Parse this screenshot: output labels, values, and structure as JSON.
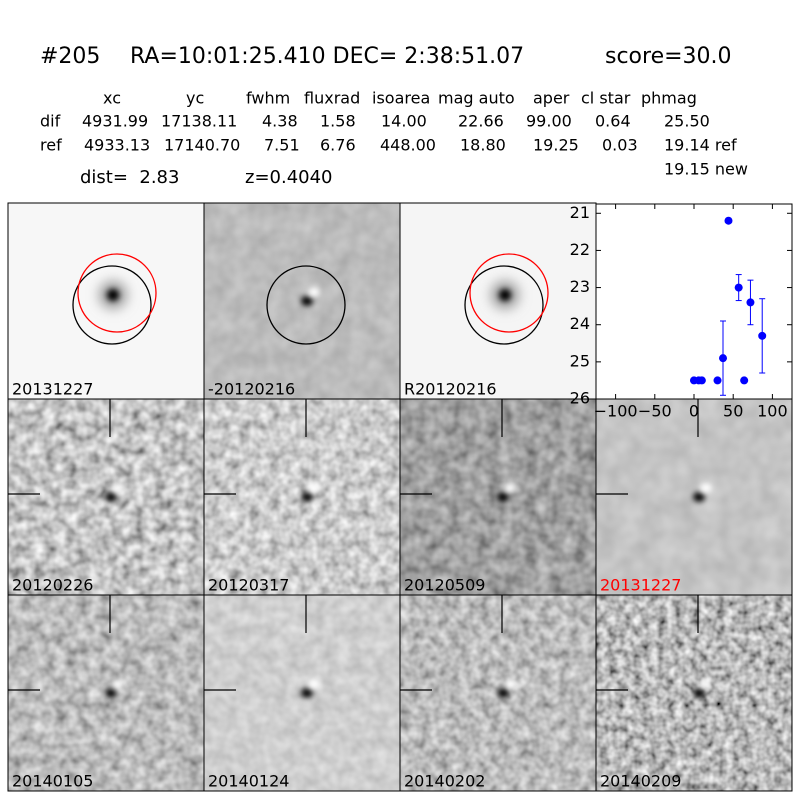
{
  "header": {
    "id": "#205",
    "coords": "RA=10:01:25.410 DEC= 2:38:51.07",
    "score": "score=30.0"
  },
  "table": {
    "columns": [
      "xc",
      "yc",
      "fwhm",
      "fluxrad",
      "isoarea",
      "mag auto",
      "aper",
      "cl star",
      "phmag"
    ],
    "rows": [
      [
        "dif",
        "4931.99",
        "17138.11",
        "4.38",
        "1.58",
        "14.00",
        "22.66",
        "99.00",
        "0.64",
        "25.50"
      ],
      [
        "ref",
        "4933.13",
        "17140.70",
        "7.51",
        "6.76",
        "448.00",
        "18.80",
        "19.25",
        "0.03",
        "19.14 ref"
      ]
    ]
  },
  "extra": {
    "new_mag": "19.15 new",
    "dist": "dist=  2.83",
    "z": "z=0.4040"
  },
  "panels": [
    {
      "label": "20131227"
    },
    {
      "label": "-20120216"
    },
    {
      "label": "R20120216"
    },
    {
      "label": "20120226"
    },
    {
      "label": "20120317"
    },
    {
      "label": "20120509"
    },
    {
      "label": "20131227",
      "label_color": "#ff0000"
    },
    {
      "label": "20140105"
    },
    {
      "label": "20140124"
    },
    {
      "label": "20140202"
    },
    {
      "label": "20140209"
    }
  ],
  "chart_data": {
    "type": "errorbar",
    "color": "#0000ff",
    "x": [
      0,
      6,
      10,
      30,
      37,
      44,
      57,
      64,
      72,
      87
    ],
    "values": [
      25.5,
      25.5,
      25.5,
      25.5,
      24.9,
      21.2,
      23.0,
      25.5,
      23.4,
      24.3
    ],
    "errors": [
      0,
      0,
      0,
      0,
      1.0,
      0.05,
      0.35,
      0,
      0.6,
      1.0
    ],
    "xlim": [
      -125,
      125
    ],
    "xticks": [
      {
        "value": -100,
        "label": "−100"
      },
      {
        "value": -50,
        "label": "−50"
      },
      0,
      50,
      100
    ],
    "ylim": [
      26,
      20.75
    ],
    "yticks": [
      21,
      22,
      23,
      24,
      25,
      26
    ]
  }
}
